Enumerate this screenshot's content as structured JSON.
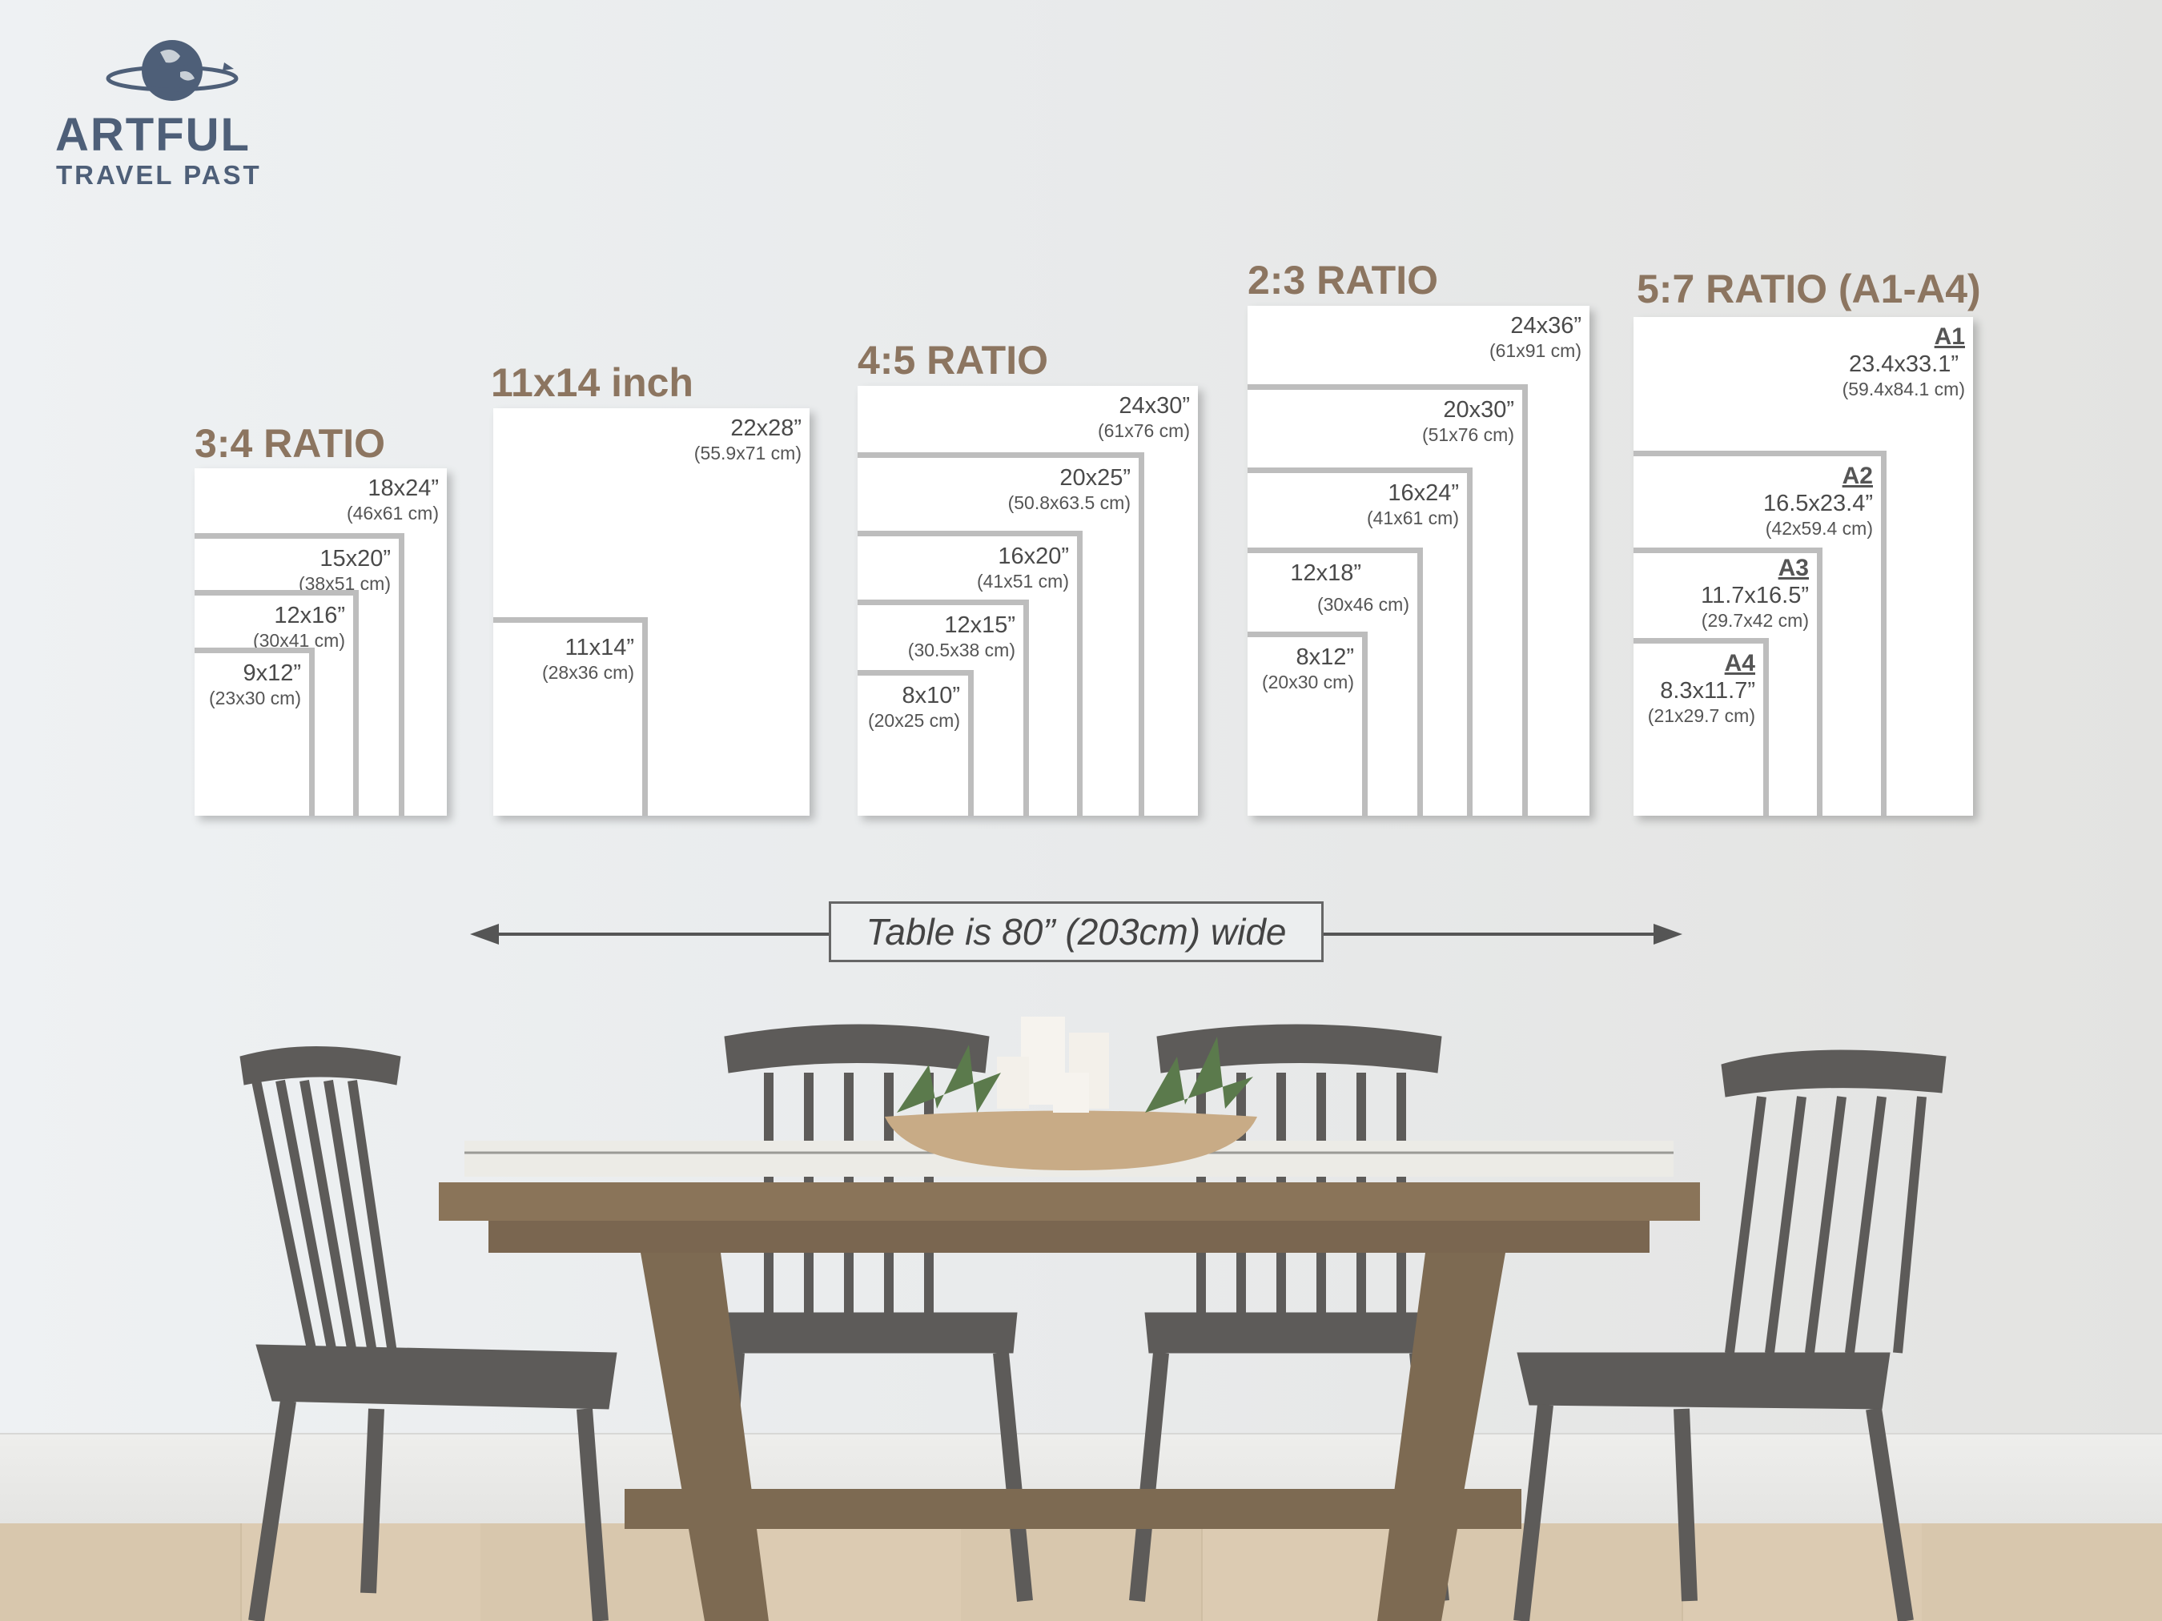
{
  "logo": {
    "line1": "ARTFUL",
    "line2": "TRAVEL PAST",
    "icon": "globe-with-orbit-icon",
    "color": "#4e5f78"
  },
  "title_color": "#8c7560",
  "groups": [
    {
      "title": "3:4 RATIO",
      "frames": [
        {
          "inch": "18x24”",
          "cm": "(46x61 cm)"
        },
        {
          "inch": "15x20”",
          "cm": "(38x51 cm)"
        },
        {
          "inch": "12x16”",
          "cm": "(30x41 cm)"
        },
        {
          "inch": "9x12”",
          "cm": "(23x30 cm)"
        }
      ]
    },
    {
      "title": "11x14 inch",
      "frames": [
        {
          "inch": "22x28”",
          "cm": "(55.9x71 cm)"
        },
        {
          "inch": "11x14”",
          "cm": "(28x36 cm)"
        }
      ]
    },
    {
      "title": "4:5 RATIO",
      "frames": [
        {
          "inch": "24x30”",
          "cm": "(61x76 cm)"
        },
        {
          "inch": "20x25”",
          "cm": "(50.8x63.5 cm)"
        },
        {
          "inch": "16x20”",
          "cm": "(41x51 cm)"
        },
        {
          "inch": "12x15”",
          "cm": "(30.5x38 cm)"
        },
        {
          "inch": "8x10”",
          "cm": "(20x25 cm)"
        }
      ]
    },
    {
      "title": "2:3 RATIO",
      "frames": [
        {
          "inch": "24x36”",
          "cm": "(61x91 cm)"
        },
        {
          "inch": "20x30”",
          "cm": "(51x76 cm)"
        },
        {
          "inch": "16x24”",
          "cm": "(41x61 cm)"
        },
        {
          "inch": "12x18”",
          "cm": "(30x46 cm)"
        },
        {
          "inch": "8x12”",
          "cm": "(20x30 cm)"
        }
      ]
    },
    {
      "title": "5:7 RATIO (A1-A4)",
      "frames": [
        {
          "label": "A1",
          "inch": "23.4x33.1”",
          "cm": "(59.4x84.1 cm)"
        },
        {
          "label": "A2",
          "inch": "16.5x23.4”",
          "cm": "(42x59.4 cm)"
        },
        {
          "label": "A3",
          "inch": "11.7x16.5”",
          "cm": "(29.7x42 cm)"
        },
        {
          "label": "A4",
          "inch": "8.3x11.7”",
          "cm": "(21x29.7 cm)"
        }
      ]
    }
  ],
  "measure": {
    "text": "Table is 80” (203cm) wide"
  }
}
